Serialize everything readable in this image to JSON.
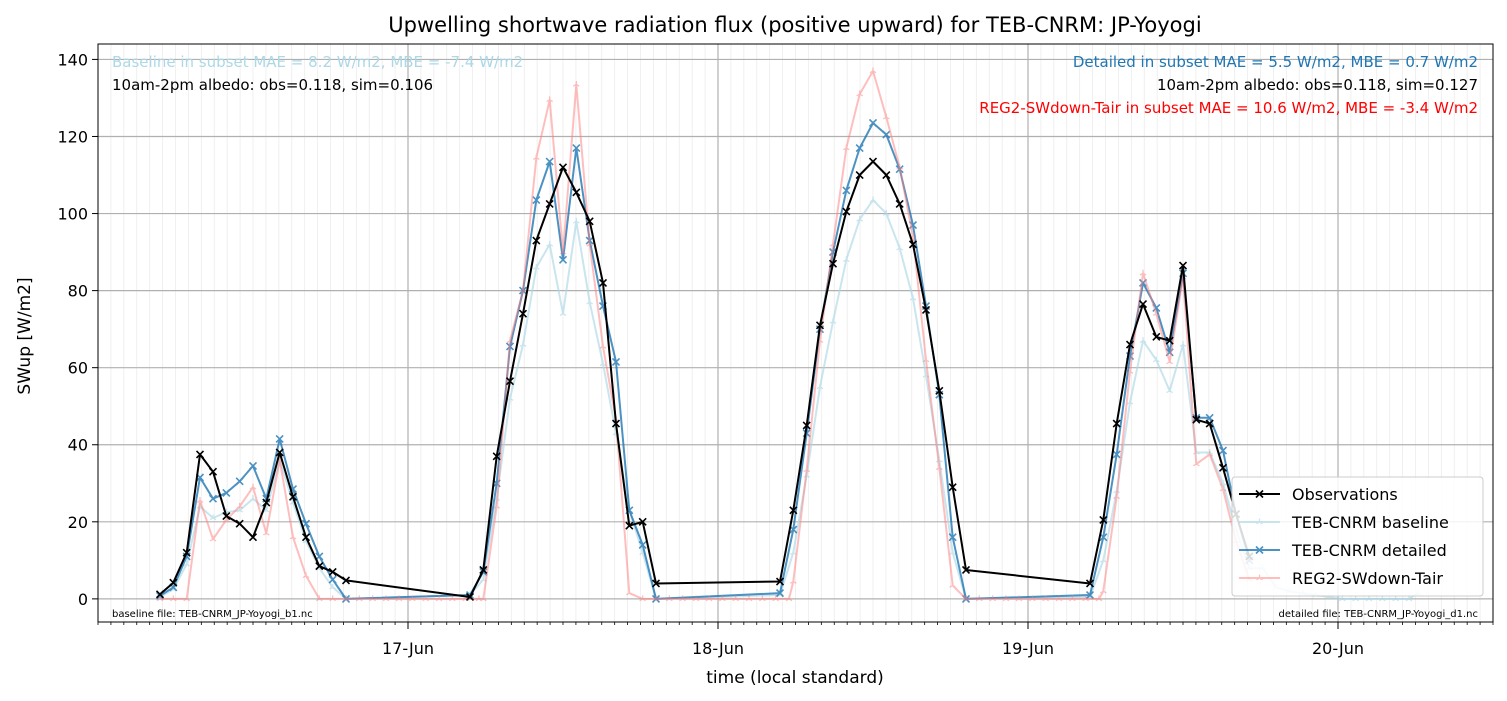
{
  "chart_data": {
    "type": "line",
    "title": "Upwelling shortwave radiation flux (positive upward) for TEB-CNRM: JP-Yoyogi",
    "xlabel": "time (local standard)",
    "ylabel": "SWup [W/m2]",
    "xlim": [
      16.0,
      20.5
    ],
    "ylim": [
      -6,
      144
    ],
    "y_ticks": [
      0,
      20,
      40,
      60,
      80,
      100,
      120,
      140
    ],
    "x_ticks": [
      {
        "label": "17-Jun",
        "value": 17
      },
      {
        "label": "18-Jun",
        "value": 18
      },
      {
        "label": "19-Jun",
        "value": 19
      },
      {
        "label": "20-Jun",
        "value": 20
      }
    ],
    "x_units": "days of June (local standard time)",
    "grid": true,
    "legend_position": "lower right",
    "annotations": {
      "baseline_stats": "Baseline in subset MAE = 8.2 W/m2, MBE = -7.4 W/m2",
      "baseline_albedo": "10am-2pm albedo: obs=0.118, sim=0.106",
      "detailed_stats": "Detailed in subset MAE = 5.5 W/m2, MBE = 0.7 W/m2",
      "detailed_albedo": "10am-2pm albedo: obs=0.118, sim=0.127",
      "reg_stats": "REG2-SWdown-Tair in subset MAE = 10.6 W/m2, MBE = -3.4 W/m2",
      "baseline_file": "baseline file: TEB-CNRM_JP-Yoyogi_b1.nc",
      "detailed_file": "detailed file: TEB-CNRM_JP-Yoyogi_d1.nc"
    },
    "series": [
      {
        "name": "Observations",
        "color": "#000000",
        "marker": "x",
        "points": [
          [
            16.2,
            1.2
          ],
          [
            16.243,
            4.2
          ],
          [
            16.286,
            12
          ],
          [
            16.329,
            37.5
          ],
          [
            16.371,
            33
          ],
          [
            16.414,
            21.5
          ],
          [
            16.457,
            19.5
          ],
          [
            16.5,
            16
          ],
          [
            16.543,
            25
          ],
          [
            16.586,
            38
          ],
          [
            16.629,
            26.5
          ],
          [
            16.671,
            16
          ],
          [
            16.714,
            8.5
          ],
          [
            16.757,
            7
          ],
          [
            16.8,
            4.8
          ],
          [
            17.2,
            0.5
          ],
          [
            17.243,
            7.5
          ],
          [
            17.286,
            37
          ],
          [
            17.329,
            56.5
          ],
          [
            17.371,
            74
          ],
          [
            17.414,
            93
          ],
          [
            17.457,
            102.5
          ],
          [
            17.5,
            112
          ],
          [
            17.543,
            105.5
          ],
          [
            17.586,
            98
          ],
          [
            17.629,
            82
          ],
          [
            17.671,
            45.5
          ],
          [
            17.714,
            19
          ],
          [
            17.757,
            20
          ],
          [
            17.8,
            4
          ],
          [
            18.2,
            4.5
          ],
          [
            18.243,
            23
          ],
          [
            18.286,
            45
          ],
          [
            18.329,
            71
          ],
          [
            18.371,
            87
          ],
          [
            18.414,
            100.5
          ],
          [
            18.457,
            110
          ],
          [
            18.5,
            113.5
          ],
          [
            18.543,
            110
          ],
          [
            18.586,
            102.5
          ],
          [
            18.629,
            92
          ],
          [
            18.671,
            75
          ],
          [
            18.714,
            54
          ],
          [
            18.757,
            29
          ],
          [
            18.8,
            7.5
          ],
          [
            19.2,
            4
          ],
          [
            19.243,
            20.5
          ],
          [
            19.286,
            45.5
          ],
          [
            19.329,
            66
          ],
          [
            19.371,
            76.5
          ],
          [
            19.414,
            68
          ],
          [
            19.457,
            67
          ],
          [
            19.5,
            86.5
          ],
          [
            19.543,
            46.5
          ],
          [
            19.586,
            45.5
          ],
          [
            19.629,
            34
          ],
          [
            19.671,
            22
          ],
          [
            19.714,
            11
          ]
        ]
      },
      {
        "name": "TEB-CNRM baseline",
        "color": "#add8e6",
        "marker": "tri_up",
        "points": [
          [
            16.2,
            0.5
          ],
          [
            16.243,
            2.5
          ],
          [
            16.286,
            9
          ],
          [
            16.329,
            24
          ],
          [
            16.371,
            21
          ],
          [
            16.414,
            22.5
          ],
          [
            16.457,
            23
          ],
          [
            16.5,
            26
          ],
          [
            16.543,
            23
          ],
          [
            16.586,
            36
          ],
          [
            16.629,
            25
          ],
          [
            16.671,
            15
          ],
          [
            16.714,
            8
          ],
          [
            16.757,
            3
          ],
          [
            16.8,
            0
          ],
          [
            17.2,
            1
          ],
          [
            17.243,
            5
          ],
          [
            17.286,
            26
          ],
          [
            17.329,
            52
          ],
          [
            17.371,
            66
          ],
          [
            17.414,
            86
          ],
          [
            17.457,
            92
          ],
          [
            17.5,
            74
          ],
          [
            17.543,
            98
          ],
          [
            17.586,
            77
          ],
          [
            17.629,
            61
          ],
          [
            17.671,
            43
          ],
          [
            17.714,
            23
          ],
          [
            17.757,
            12
          ],
          [
            17.8,
            0
          ],
          [
            18.2,
            1
          ],
          [
            18.243,
            12
          ],
          [
            18.286,
            32
          ],
          [
            18.329,
            55
          ],
          [
            18.371,
            72
          ],
          [
            18.414,
            88
          ],
          [
            18.457,
            98.5
          ],
          [
            18.5,
            103.5
          ],
          [
            18.543,
            100
          ],
          [
            18.586,
            91
          ],
          [
            18.629,
            78
          ],
          [
            18.671,
            58
          ],
          [
            18.714,
            36
          ],
          [
            18.757,
            12
          ],
          [
            18.8,
            0
          ],
          [
            19.2,
            0.5
          ],
          [
            19.243,
            10
          ],
          [
            19.286,
            28
          ],
          [
            19.329,
            51
          ],
          [
            19.371,
            67
          ],
          [
            19.414,
            62
          ],
          [
            19.457,
            54
          ],
          [
            19.5,
            66
          ],
          [
            19.543,
            38
          ],
          [
            19.586,
            38
          ],
          [
            19.629,
            30
          ],
          [
            19.671,
            18
          ],
          [
            19.714,
            8
          ],
          [
            19.757,
            8
          ],
          [
            19.8,
            3
          ],
          [
            19.843,
            2
          ],
          [
            19.886,
            1.5
          ],
          [
            19.929,
            1
          ],
          [
            19.971,
            0.5
          ],
          [
            20.014,
            0
          ],
          [
            20.057,
            0
          ],
          [
            20.1,
            0
          ],
          [
            20.143,
            0
          ],
          [
            20.186,
            0
          ],
          [
            20.229,
            0
          ],
          [
            20.257,
            1.5
          ]
        ]
      },
      {
        "name": "TEB-CNRM detailed",
        "color": "#1f77b4",
        "marker": "x",
        "points": [
          [
            16.2,
            0.8
          ],
          [
            16.243,
            3
          ],
          [
            16.286,
            11
          ],
          [
            16.329,
            31.5
          ],
          [
            16.371,
            26
          ],
          [
            16.414,
            27.5
          ],
          [
            16.457,
            30.5
          ],
          [
            16.5,
            34.5
          ],
          [
            16.543,
            26
          ],
          [
            16.586,
            41.5
          ],
          [
            16.629,
            28.5
          ],
          [
            16.671,
            19.5
          ],
          [
            16.714,
            11
          ],
          [
            16.757,
            5
          ],
          [
            16.8,
            0
          ],
          [
            17.2,
            1
          ],
          [
            17.243,
            7
          ],
          [
            17.286,
            30
          ],
          [
            17.329,
            65.5
          ],
          [
            17.371,
            80
          ],
          [
            17.414,
            103.5
          ],
          [
            17.457,
            113.5
          ],
          [
            17.5,
            88
          ],
          [
            17.543,
            117
          ],
          [
            17.586,
            93
          ],
          [
            17.629,
            76
          ],
          [
            17.671,
            61.5
          ],
          [
            17.714,
            23
          ],
          [
            17.757,
            14
          ],
          [
            17.8,
            0
          ],
          [
            18.2,
            1.5
          ],
          [
            18.243,
            18
          ],
          [
            18.286,
            43
          ],
          [
            18.329,
            70
          ],
          [
            18.371,
            90
          ],
          [
            18.414,
            106
          ],
          [
            18.457,
            117
          ],
          [
            18.5,
            123.5
          ],
          [
            18.543,
            120.5
          ],
          [
            18.586,
            111.5
          ],
          [
            18.629,
            97
          ],
          [
            18.671,
            76
          ],
          [
            18.714,
            53
          ],
          [
            18.757,
            16
          ],
          [
            18.8,
            0
          ],
          [
            19.2,
            1
          ],
          [
            19.243,
            16
          ],
          [
            19.286,
            37.5
          ],
          [
            19.329,
            63
          ],
          [
            19.371,
            82
          ],
          [
            19.414,
            75.5
          ],
          [
            19.457,
            64
          ],
          [
            19.5,
            84.5
          ],
          [
            19.543,
            47
          ],
          [
            19.586,
            47
          ],
          [
            19.629,
            38.5
          ],
          [
            19.671,
            22
          ],
          [
            19.714,
            10
          ]
        ]
      },
      {
        "name": "REG2-SWdown-Tair",
        "color": "#ff7f7f",
        "marker": "tri_up",
        "points": [
          [
            16.2,
            0
          ],
          [
            16.243,
            0
          ],
          [
            16.286,
            0
          ],
          [
            16.329,
            25.5
          ],
          [
            16.371,
            15.5
          ],
          [
            16.414,
            20.5
          ],
          [
            16.457,
            24
          ],
          [
            16.5,
            29
          ],
          [
            16.543,
            17
          ],
          [
            16.586,
            36
          ],
          [
            16.629,
            16
          ],
          [
            16.671,
            6
          ],
          [
            16.714,
            0
          ],
          [
            16.757,
            0
          ],
          [
            16.8,
            0
          ],
          [
            16.843,
            0
          ],
          [
            16.886,
            0
          ],
          [
            16.929,
            0
          ],
          [
            16.971,
            0
          ],
          [
            17.014,
            0
          ],
          [
            17.057,
            0
          ],
          [
            17.1,
            0
          ],
          [
            17.143,
            0
          ],
          [
            17.186,
            0
          ],
          [
            17.229,
            0
          ],
          [
            17.243,
            0
          ],
          [
            17.286,
            24
          ],
          [
            17.329,
            67
          ],
          [
            17.371,
            80
          ],
          [
            17.414,
            114.5
          ],
          [
            17.457,
            129.5
          ],
          [
            17.5,
            90
          ],
          [
            17.543,
            133.5
          ],
          [
            17.586,
            92
          ],
          [
            17.629,
            65.5
          ],
          [
            17.671,
            46.5
          ],
          [
            17.714,
            1.5
          ],
          [
            17.757,
            0
          ],
          [
            17.8,
            0
          ],
          [
            17.843,
            0
          ],
          [
            17.886,
            0
          ],
          [
            17.929,
            0
          ],
          [
            17.971,
            0
          ],
          [
            18.014,
            0
          ],
          [
            18.057,
            0
          ],
          [
            18.1,
            0
          ],
          [
            18.143,
            0
          ],
          [
            18.186,
            0
          ],
          [
            18.229,
            0
          ],
          [
            18.243,
            4.5
          ],
          [
            18.286,
            33.5
          ],
          [
            18.329,
            67
          ],
          [
            18.371,
            92
          ],
          [
            18.414,
            117
          ],
          [
            18.457,
            131
          ],
          [
            18.5,
            137
          ],
          [
            18.543,
            125
          ],
          [
            18.586,
            112
          ],
          [
            18.629,
            94
          ],
          [
            18.671,
            62
          ],
          [
            18.714,
            34
          ],
          [
            18.757,
            3.5
          ],
          [
            18.8,
            0
          ],
          [
            18.843,
            0
          ],
          [
            18.886,
            0
          ],
          [
            18.929,
            0
          ],
          [
            18.971,
            0
          ],
          [
            19.014,
            0
          ],
          [
            19.057,
            0
          ],
          [
            19.1,
            0
          ],
          [
            19.143,
            0
          ],
          [
            19.186,
            0
          ],
          [
            19.229,
            0
          ],
          [
            19.243,
            2
          ],
          [
            19.286,
            26.5
          ],
          [
            19.329,
            59
          ],
          [
            19.371,
            84.5
          ],
          [
            19.414,
            74
          ],
          [
            19.457,
            61.5
          ],
          [
            19.5,
            83.5
          ],
          [
            19.543,
            35
          ],
          [
            19.586,
            37.5
          ],
          [
            19.629,
            28.5
          ],
          [
            19.671,
            15
          ],
          [
            19.714,
            5
          ]
        ]
      }
    ]
  }
}
